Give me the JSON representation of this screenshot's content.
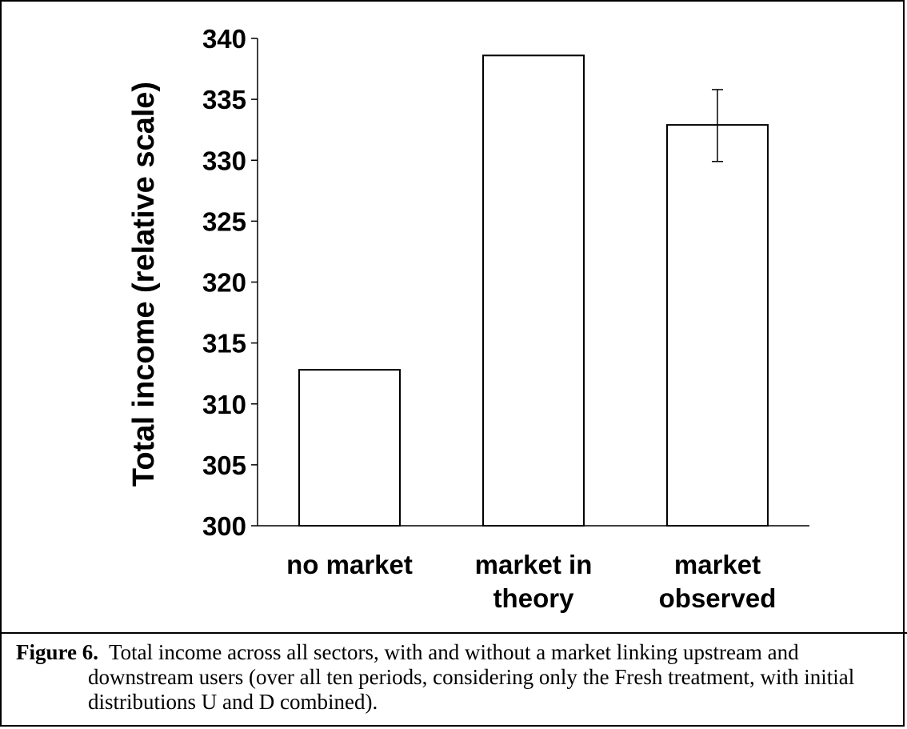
{
  "chart_data": {
    "type": "bar",
    "ylabel": "Total income (relative scale)",
    "xlabel": "",
    "ylim": [
      300,
      340
    ],
    "yticks": [
      300,
      305,
      310,
      315,
      320,
      325,
      330,
      335,
      340
    ],
    "categories": [
      [
        "no market"
      ],
      [
        "market in",
        "theory"
      ],
      [
        "market",
        "observed"
      ]
    ],
    "values": [
      312.8,
      338.6,
      332.9
    ],
    "error_bars": [
      null,
      null,
      {
        "low": 329.9,
        "high": 335.8
      }
    ],
    "bar_color": "#ffffff",
    "edge_color": "#000000",
    "grid": false
  },
  "caption": {
    "label": "Figure 6.",
    "text": "Total income across all sectors, with and without a market linking upstream and downstream users (over all ten periods, considering only the Fresh treatment, with initial distributions U and D combined)."
  }
}
